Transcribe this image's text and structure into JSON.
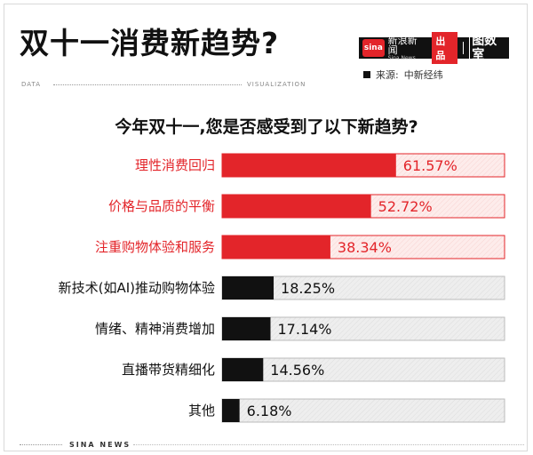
{
  "header": {
    "title": "双十一消费新趋势?",
    "brand_sina_logo": "sina",
    "brand_sina_cn": "新浪新闻",
    "brand_sina_en": "Sina News",
    "brand_produced": "出品",
    "brand_tushuo": "图数室",
    "source_label": "来源:",
    "source_value": "中新经纬",
    "data_tag": "DATA",
    "visualization_tag": "VISUALIZATION"
  },
  "footer": {
    "text": "SINA NEWS"
  },
  "colors": {
    "highlight": "#e3252a",
    "highlight_track": "#fdeceb",
    "normal": "#111111",
    "normal_track": "#eeeeee"
  },
  "chart_data": {
    "type": "bar",
    "orientation": "horizontal",
    "title": "今年双十一,您是否感受到了以下新趋势?",
    "categories": [
      "理性消费回归",
      "价格与品质的平衡",
      "注重购物体验和服务",
      "新技术(如AI)推动购物体验",
      "情绪、精神消费增加",
      "直播带货精细化",
      "其他"
    ],
    "values": [
      61.57,
      52.72,
      38.34,
      18.25,
      17.14,
      14.56,
      6.18
    ],
    "value_labels": [
      "61.57%",
      "52.72%",
      "38.34%",
      "18.25%",
      "17.14%",
      "14.56%",
      "6.18%"
    ],
    "highlighted": [
      true,
      true,
      true,
      false,
      false,
      false,
      false
    ],
    "xlim": [
      0,
      100
    ],
    "grid": false,
    "legend": "none"
  }
}
